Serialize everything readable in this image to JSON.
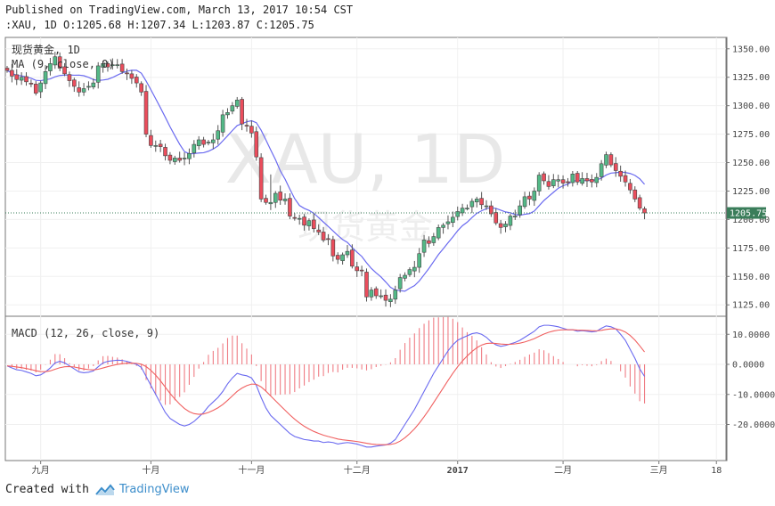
{
  "header": {
    "published": "Published on TradingView.com, March 13, 2017 10:54 CST",
    "symbol": ":XAU, 1D",
    "ohlc": "O:1205.68 H:1207.34 L:1203.87 C:1205.75"
  },
  "pane_labels": {
    "main_name": "现货黄金, 1D",
    "ma": "MA (9, close, 0)",
    "watermark_big": "XAU, 1D",
    "watermark_small": "现货黄金",
    "macd": "MACD (12, 26, close, 9)"
  },
  "footer": {
    "created": "Created with",
    "brand": "TradingView"
  },
  "colors": {
    "up": "#53b987",
    "down": "#eb4d5c",
    "ma": "#6a6af0",
    "macd": "#6a6af0",
    "signal": "#f06060",
    "hist": "#ef7c84",
    "last_price_bg": "#3a7d5a",
    "grid": "#f0f0f0",
    "axis": "#555555"
  },
  "chart_data": [
    {
      "type": "candlestick",
      "ylim": [
        1115,
        1360
      ],
      "yticks": [
        "1350.00",
        "1325.00",
        "1300.00",
        "1275.00",
        "1250.00",
        "1225.00",
        "1200.00",
        "1175.00",
        "1150.00",
        "1125.00"
      ],
      "ytick_values": [
        1350,
        1325,
        1300,
        1275,
        1250,
        1225,
        1200,
        1175,
        1150,
        1125
      ],
      "last_price": 1205.75,
      "last_price_label": "1205.75",
      "xticks": [
        {
          "label": "九月",
          "index": 7
        },
        {
          "label": "十月",
          "index": 30
        },
        {
          "label": "十一月",
          "index": 51
        },
        {
          "label": "十二月",
          "index": 73
        },
        {
          "label": "2017",
          "index": 94
        },
        {
          "label": "二月",
          "index": 116
        },
        {
          "label": "三月",
          "index": 136
        },
        {
          "label": "18",
          "index": 148
        }
      ],
      "close": [
        1331,
        1326,
        1323,
        1325,
        1321,
        1319,
        1311,
        1320,
        1330,
        1337,
        1343,
        1333,
        1328,
        1322,
        1317,
        1312,
        1315,
        1317,
        1320,
        1335,
        1337,
        1334,
        1336,
        1336,
        1330,
        1328,
        1324,
        1320,
        1312,
        1275,
        1265,
        1265,
        1264,
        1256,
        1252,
        1254,
        1252,
        1254,
        1258,
        1266,
        1270,
        1266,
        1268,
        1270,
        1278,
        1292,
        1294,
        1300,
        1305,
        1284,
        1282,
        1276,
        1255,
        1218,
        1215,
        1215,
        1223,
        1217,
        1218,
        1203,
        1201,
        1201,
        1195,
        1199,
        1192,
        1189,
        1182,
        1183,
        1168,
        1165,
        1169,
        1172,
        1159,
        1155,
        1155,
        1132,
        1138,
        1133,
        1133,
        1129,
        1130,
        1138,
        1149,
        1151,
        1156,
        1158,
        1170,
        1182,
        1179,
        1185,
        1193,
        1195,
        1198,
        1202,
        1207,
        1210,
        1210,
        1216,
        1218,
        1213,
        1212,
        1205,
        1197,
        1193,
        1196,
        1203,
        1203,
        1212,
        1220,
        1218,
        1225,
        1239,
        1234,
        1229,
        1235,
        1235,
        1232,
        1233,
        1240,
        1233,
        1236,
        1234,
        1233,
        1237,
        1249,
        1257,
        1248,
        1243,
        1238,
        1233,
        1226,
        1218,
        1210,
        1205.75
      ],
      "macd": [
        -0.5,
        -1.2,
        -1.8,
        -2.0,
        -2.5,
        -3.0,
        -3.8,
        -3.5,
        -2.5,
        -1.2,
        0.5,
        1.0,
        0.5,
        -0.5,
        -1.5,
        -2.5,
        -2.8,
        -2.6,
        -2.2,
        -0.8,
        0.5,
        1.0,
        1.2,
        1.4,
        1.3,
        1.0,
        0.5,
        0.0,
        -1.0,
        -4.0,
        -7.0,
        -10.0,
        -13.0,
        -16.0,
        -18.0,
        -19.0,
        -20.0,
        -20.5,
        -20.0,
        -19.0,
        -17.5,
        -16.0,
        -14.0,
        -12.5,
        -11.0,
        -9.0,
        -6.5,
        -4.5,
        -3.0,
        -3.5,
        -3.8,
        -4.5,
        -7.0,
        -11.0,
        -14.5,
        -17.0,
        -18.5,
        -20.0,
        -21.5,
        -23.0,
        -24.0,
        -24.5,
        -25.0,
        -25.2,
        -25.5,
        -25.5,
        -26.0,
        -25.8,
        -26.0,
        -26.5,
        -26.2,
        -26.0,
        -26.2,
        -26.5,
        -27.0,
        -27.5,
        -27.5,
        -27.2,
        -27.0,
        -26.8,
        -26.2,
        -25.0,
        -22.5,
        -20.0,
        -17.5,
        -15.0,
        -12.0,
        -9.0,
        -6.0,
        -3.0,
        -0.5,
        2.0,
        4.5,
        6.5,
        8.0,
        8.8,
        9.5,
        10.2,
        10.5,
        10.0,
        9.0,
        7.5,
        6.5,
        6.0,
        6.3,
        6.8,
        7.3,
        8.0,
        9.0,
        10.0,
        11.0,
        12.5,
        13.0,
        13.0,
        12.8,
        12.5,
        12.0,
        11.5,
        11.5,
        11.0,
        11.2,
        11.0,
        10.8,
        11.0,
        12.0,
        12.8,
        12.5,
        11.8,
        10.0,
        8.0,
        5.0,
        2.0,
        -1.5,
        -4.0
      ]
    }
  ]
}
